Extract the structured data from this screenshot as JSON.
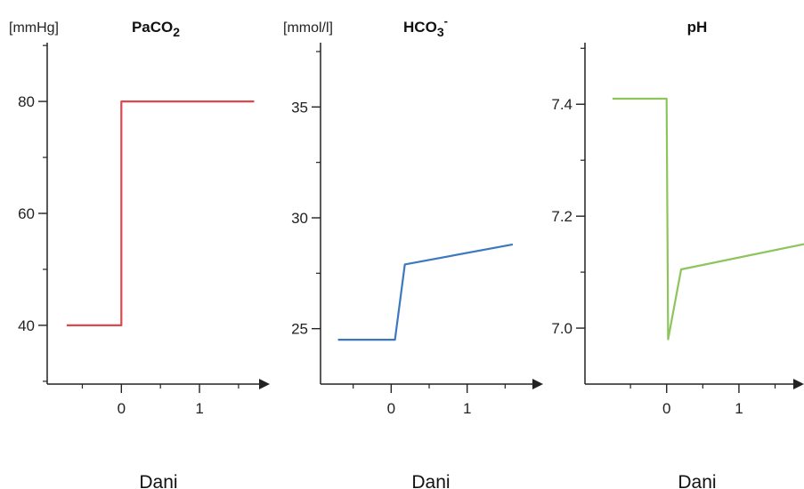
{
  "chart_data": [
    {
      "type": "line",
      "title": "PaCO",
      "title_sub": "2",
      "title_sup": "",
      "ylabel": "[mmHg]",
      "xlabel": "Dani",
      "x_ticks": [
        0,
        1
      ],
      "y_ticks": [
        40,
        60,
        80
      ],
      "xlim": [
        -0.95,
        1.9
      ],
      "ylim": [
        29.5,
        90.5
      ],
      "grid": false,
      "series": [
        {
          "color": "#e0474c",
          "x": [
            -0.7,
            0.0,
            0.0,
            1.7
          ],
          "y": [
            40,
            40,
            80,
            80
          ]
        }
      ]
    },
    {
      "type": "line",
      "title": "HCO",
      "title_sub": "3",
      "title_sup": "-",
      "ylabel": "[mmol/l]",
      "xlabel": "Dani",
      "x_ticks": [
        0,
        1
      ],
      "y_ticks": [
        25,
        30,
        35
      ],
      "xlim": [
        -0.93,
        2.0
      ],
      "ylim": [
        22.5,
        37.9
      ],
      "grid": false,
      "series": [
        {
          "color": "#3c78c0",
          "x": [
            -0.7,
            0.05,
            0.18,
            1.6
          ],
          "y": [
            24.5,
            24.5,
            27.9,
            28.8
          ]
        }
      ]
    },
    {
      "type": "line",
      "title": "pH",
      "title_sub": "",
      "title_sup": "",
      "ylabel": "",
      "xlabel": "Dani",
      "x_ticks": [
        0,
        1
      ],
      "y_ticks": [
        7.0,
        7.2,
        7.4
      ],
      "xlim": [
        -1.13,
        1.9
      ],
      "ylim": [
        6.9,
        7.51
      ],
      "grid": false,
      "series": [
        {
          "color": "#8dc45c",
          "x": [
            -0.75,
            0.0,
            0.02,
            0.2,
            1.9
          ],
          "y": [
            7.41,
            7.41,
            6.98,
            7.105,
            7.15
          ]
        }
      ]
    }
  ]
}
